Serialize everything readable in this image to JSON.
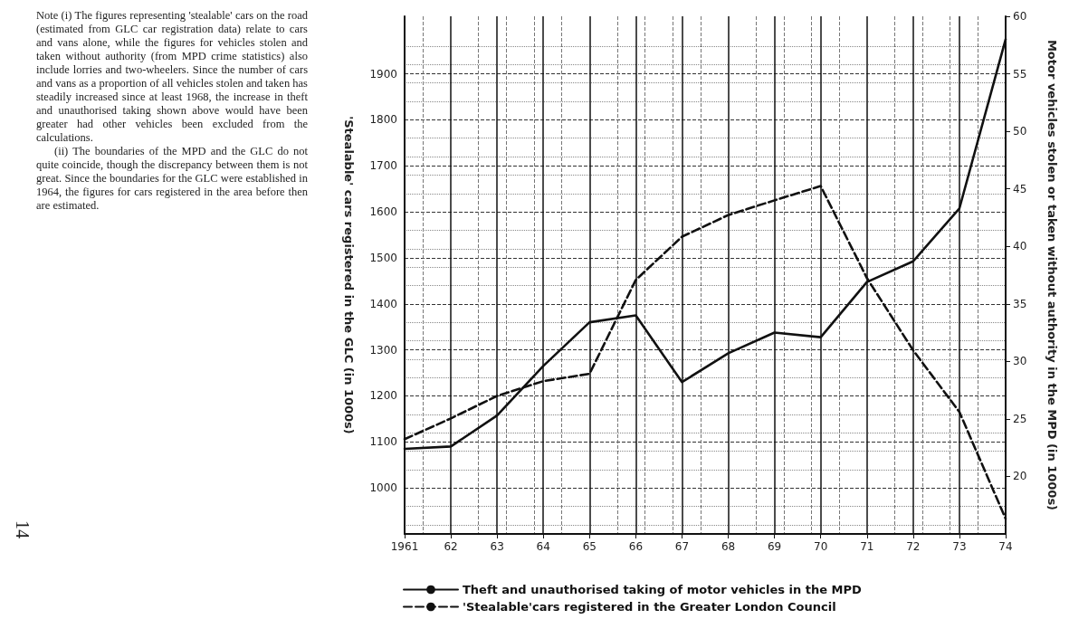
{
  "chart_data": {
    "type": "line",
    "x": [
      1961,
      1962,
      1963,
      1964,
      1965,
      1966,
      1967,
      1968,
      1969,
      1970,
      1971,
      1972,
      1973,
      1974
    ],
    "series": [
      {
        "name": "Theft and unauthorised taking of motor vehicles in the MPD",
        "color": "#111111",
        "axis": "y2",
        "line_style": "solid",
        "values": [
          22.4,
          22.6,
          25.3,
          29.6,
          33.4,
          34.0,
          28.2,
          30.7,
          32.5,
          32.1,
          36.9,
          38.7,
          43.3,
          58.0
        ]
      },
      {
        "name": "'Stealable'cars registered in the Greater London Council",
        "color": "#111111",
        "line_style": "dashed",
        "values": [
          1106,
          1151,
          1200,
          1232,
          1248,
          1452,
          1546,
          1593,
          1625,
          1656,
          1456,
          1299,
          1165,
          933
        ]
      }
    ],
    "xlim": [
      1961,
      1974
    ],
    "xticks": [
      {
        "value": 1961,
        "label": "1961"
      },
      {
        "value": 1962,
        "label": "62"
      },
      {
        "value": 1963,
        "label": "63"
      },
      {
        "value": 1964,
        "label": "64"
      },
      {
        "value": 1965,
        "label": "65"
      },
      {
        "value": 1966,
        "label": "66"
      },
      {
        "value": 1967,
        "label": "67"
      },
      {
        "value": 1968,
        "label": "68"
      },
      {
        "value": 1969,
        "label": "69"
      },
      {
        "value": 1970,
        "label": "70"
      },
      {
        "value": 1971,
        "label": "71"
      },
      {
        "value": 1972,
        "label": "72"
      },
      {
        "value": 1973,
        "label": "73"
      },
      {
        "value": 1974,
        "label": "74"
      }
    ],
    "ylabel": "'Stealable' cars registered in the GLC (in 1000s)",
    "ylim": [
      900,
      2025
    ],
    "yticks": [
      1000,
      1100,
      1200,
      1300,
      1400,
      1500,
      1600,
      1700,
      1800,
      1900
    ],
    "y2label": "Motor vehicles stolen or taken without authority in the MPD (in 1000s)",
    "y2lim": [
      15,
      60
    ],
    "y2ticks": [
      20,
      25,
      30,
      35,
      40,
      45,
      50,
      55,
      60
    ],
    "grid": true,
    "legend": "bottom",
    "marker": "none",
    "annotations": [
      "Note (i) The figures representing 'stealable' cars on the road (estimated from GLC car registration data) relate to cars and vans alone, while the figures for vehicles stolen and taken without authority (from MPD crime statistics) also include lorries and two-wheelers. Since the number of cars and vans as a proportion of all vehicles stolen and taken has steadily increased since at least 1968, the increase in theft and unauthorised taking shown above would have been greater had other vehicles been excluded from the calculations.",
      "(ii) The boundaries of the MPD and the GLC do not quite coincide, though the discrepancy between them is not great. Since the boundaries for the GLC were established in 1964, the figures for cars registered in the area before then are estimated.",
      "14"
    ]
  }
}
